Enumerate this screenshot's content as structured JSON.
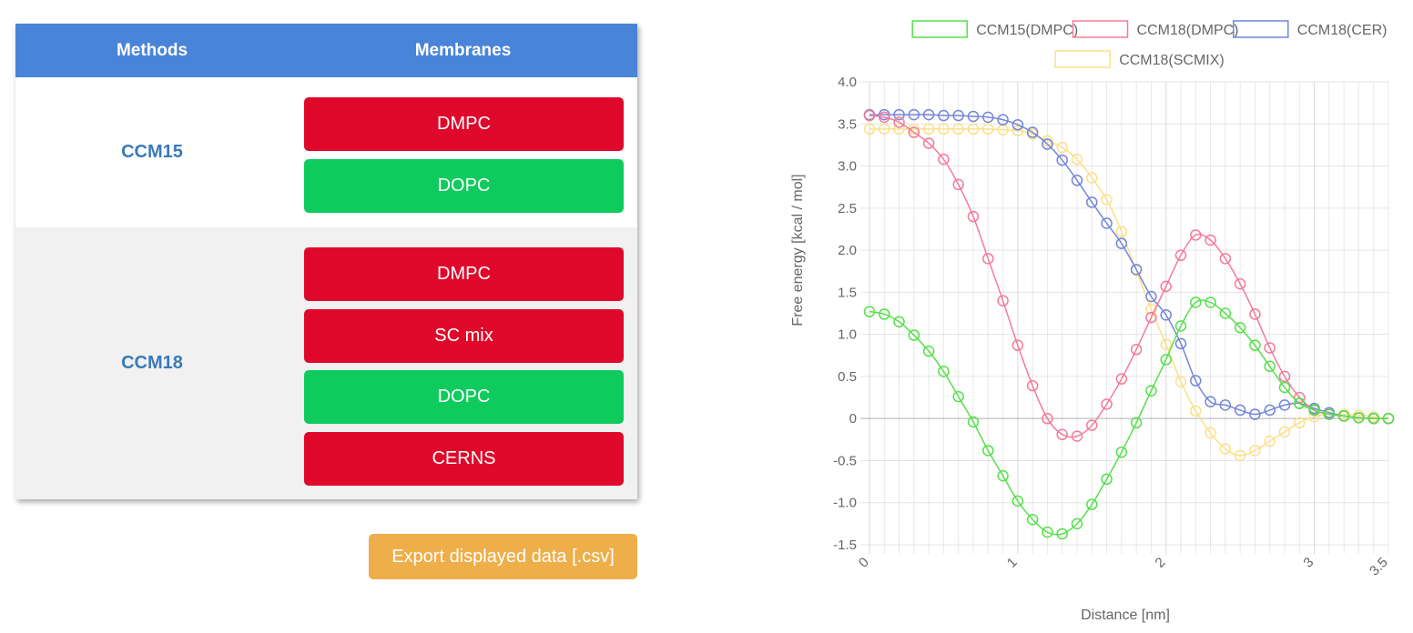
{
  "table": {
    "headers": {
      "methods": "Methods",
      "membranes": "Membranes"
    },
    "groups": [
      {
        "method": "CCM15",
        "membranes": [
          {
            "label": "DMPC",
            "color": "#e0082a"
          },
          {
            "label": "DOPC",
            "color": "#0fcb5e"
          }
        ]
      },
      {
        "method": "CCM18",
        "membranes": [
          {
            "label": "DMPC",
            "color": "#e0082a"
          },
          {
            "label": "SC mix",
            "color": "#e0082a"
          },
          {
            "label": "DOPC",
            "color": "#0fcb5e"
          },
          {
            "label": "CERNS",
            "color": "#e0082a"
          }
        ]
      }
    ],
    "header_color": "#4a84d8"
  },
  "export_button": {
    "label": "Export displayed data [.csv]",
    "color": "#eeae4a"
  },
  "chart_data": {
    "type": "line",
    "xlabel": "Distance [nm]",
    "ylabel": "Free energy [kcal / mol]",
    "xlim": [
      0,
      3.5
    ],
    "ylim": [
      -1.5,
      4.0
    ],
    "x_tick_labels": [
      "0",
      "1",
      "2",
      "3",
      "3.5"
    ],
    "x_ticks": [
      0,
      1,
      2,
      3,
      3.5
    ],
    "y_ticks": [
      -1.5,
      -1.0,
      -0.5,
      0,
      0.5,
      1.0,
      1.5,
      2.0,
      2.5,
      3.0,
      3.5,
      4.0
    ],
    "y_tick_labels": [
      "-1.5",
      "-1.0",
      "-0.5",
      "0",
      "0.5",
      "1.0",
      "1.5",
      "2.0",
      "2.5",
      "3.0",
      "3.5",
      "4.0"
    ],
    "grid": true,
    "legend_position": "top",
    "x": [
      0,
      0.1,
      0.2,
      0.3,
      0.4,
      0.5,
      0.6,
      0.7,
      0.8,
      0.9,
      1.0,
      1.1,
      1.2,
      1.3,
      1.4,
      1.5,
      1.6,
      1.7,
      1.8,
      1.9,
      2.0,
      2.1,
      2.2,
      2.3,
      2.4,
      2.5,
      2.6,
      2.7,
      2.8,
      2.9,
      3.0,
      3.1,
      3.2,
      3.3,
      3.4,
      3.5
    ],
    "series": [
      {
        "name": "CCM15(DMPC)",
        "color": "#55e04a",
        "values": [
          1.27,
          1.24,
          1.15,
          0.99,
          0.8,
          0.56,
          0.26,
          -0.04,
          -0.38,
          -0.68,
          -0.98,
          -1.2,
          -1.35,
          -1.37,
          -1.25,
          -1.02,
          -0.72,
          -0.4,
          -0.05,
          0.33,
          0.7,
          1.1,
          1.38,
          1.38,
          1.25,
          1.08,
          0.87,
          0.62,
          0.37,
          0.18,
          0.1,
          0.05,
          0.03,
          0.01,
          0.0,
          0.0
        ]
      },
      {
        "name": "CCM18(DMPC)",
        "color": "#f57a9a",
        "values": [
          3.6,
          3.58,
          3.52,
          3.4,
          3.27,
          3.08,
          2.78,
          2.4,
          1.9,
          1.4,
          0.87,
          0.39,
          0.0,
          -0.19,
          -0.21,
          -0.08,
          0.17,
          0.47,
          0.82,
          1.2,
          1.57,
          1.94,
          2.18,
          2.12,
          1.9,
          1.6,
          1.24,
          0.84,
          0.5,
          0.25,
          0.1,
          0.05,
          0.03,
          0.01,
          0.0,
          0.0
        ]
      },
      {
        "name": "CCM18(CER)",
        "color": "#7486d8",
        "values": [
          3.61,
          3.61,
          3.61,
          3.61,
          3.61,
          3.6,
          3.6,
          3.59,
          3.58,
          3.55,
          3.49,
          3.4,
          3.26,
          3.07,
          2.83,
          2.57,
          2.32,
          2.08,
          1.77,
          1.45,
          1.23,
          0.89,
          0.45,
          0.2,
          0.16,
          0.1,
          0.05,
          0.1,
          0.16,
          0.18,
          0.12,
          0.07,
          0.03,
          0.01,
          0.0,
          0.0
        ]
      },
      {
        "name": "CCM18(SCMIX)",
        "color": "#fbe08a",
        "values": [
          3.44,
          3.44,
          3.44,
          3.44,
          3.44,
          3.44,
          3.44,
          3.44,
          3.44,
          3.43,
          3.42,
          3.38,
          3.3,
          3.22,
          3.08,
          2.86,
          2.6,
          2.22,
          1.76,
          1.3,
          0.88,
          0.44,
          0.09,
          -0.17,
          -0.36,
          -0.44,
          -0.38,
          -0.27,
          -0.16,
          -0.05,
          0.02,
          0.05,
          0.05,
          0.04,
          0.02,
          0.0
        ]
      }
    ]
  }
}
